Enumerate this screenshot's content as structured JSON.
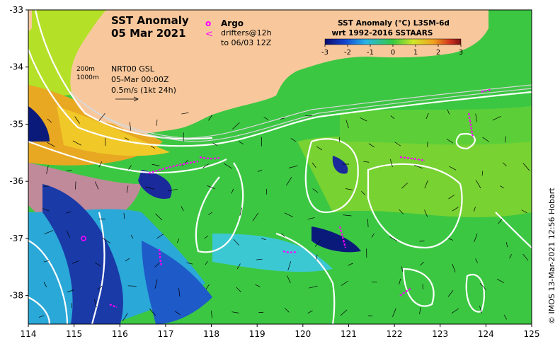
{
  "title": {
    "line1": "SST Anomaly",
    "line2": "05 Mar 2021"
  },
  "legend": {
    "argo_symbol": "o",
    "argo_label": "Argo",
    "drifter_symbol": "<",
    "drifter_label": "drifters@12h",
    "drifter_label2": "to 06/03 12Z",
    "marker_color": "#ff00ff"
  },
  "colorbar": {
    "title1": "SST Anomaly (°C) L3SM-6d",
    "title2": "wrt 1992-2016 SSTAARS",
    "ticks": [
      "-3",
      "-2",
      "-1",
      "0",
      "1",
      "2",
      "3"
    ],
    "range": [
      -3,
      3
    ]
  },
  "info": {
    "depth1": "200m",
    "depth2": "1000m",
    "product": "NRT00 GSL",
    "time": "05-Mar 00:00Z",
    "speed": "0.5m/s (1kt 24h)"
  },
  "axes": {
    "x_ticks": [
      "114",
      "115",
      "116",
      "117",
      "118",
      "119",
      "120",
      "121",
      "122",
      "123",
      "124",
      "125"
    ],
    "y_ticks": [
      "-33",
      "-34",
      "-35",
      "-36",
      "-37",
      "-38"
    ],
    "xlim": [
      114,
      125
    ],
    "ylim": [
      -38.5,
      -33
    ]
  },
  "credit": "© IMOS 13-Mar-2021 12:56 Hobart",
  "colors": {
    "land": "#f8c89c",
    "anomaly_zero": "#37c940",
    "anomaly_warm": "#e8e81a",
    "anomaly_cold": "#1a1a8a",
    "contour": "#ffffff"
  }
}
